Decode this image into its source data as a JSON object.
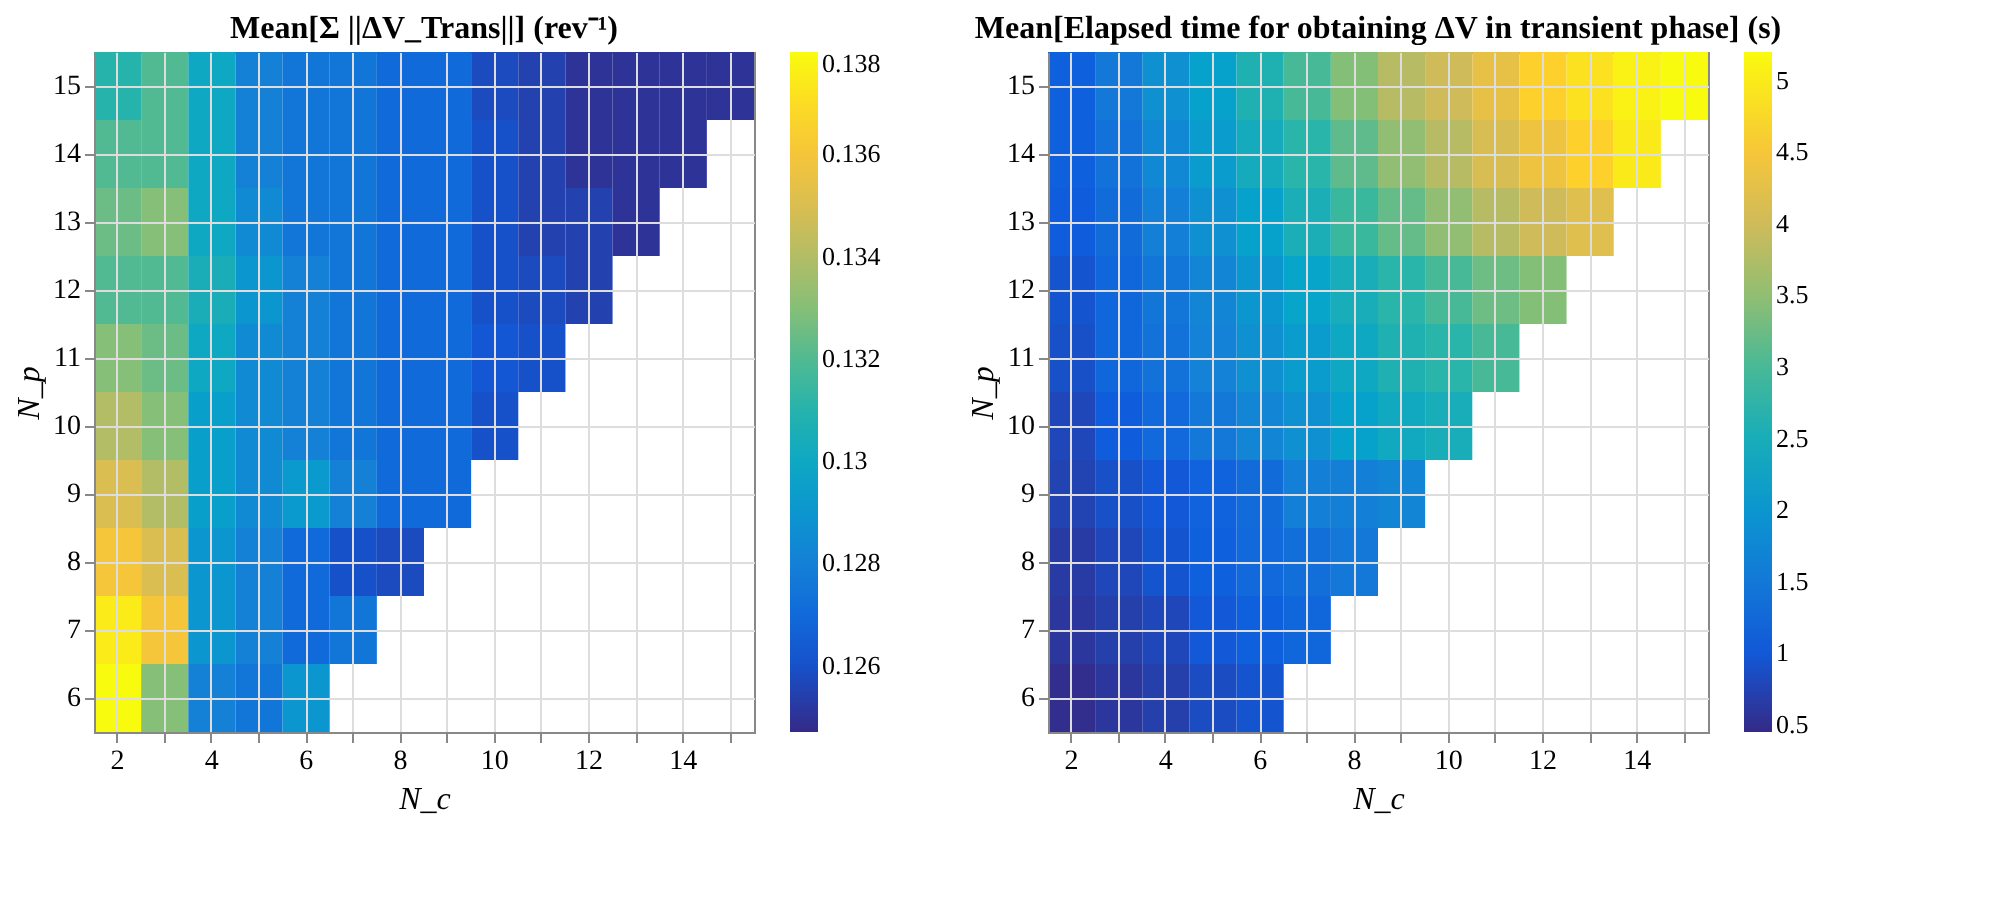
{
  "chart_data": [
    {
      "type": "heatmap",
      "title": "Mean[Σ ||ΔV_Trans||] (rev⁻¹)",
      "xlabel": "N_c",
      "ylabel": "N_p",
      "grid": true,
      "categories": [
        "2",
        null,
        "4",
        null,
        "6",
        null,
        "8",
        null,
        "10",
        null,
        "12",
        null,
        "14",
        null
      ],
      "y_categories": [
        "15",
        "14",
        "13",
        "12",
        "11",
        "10",
        "9",
        "8",
        "7",
        "6"
      ],
      "cells": [
        [
          0.131,
          0.132,
          0.13,
          0.128,
          0.1275,
          0.1275,
          0.127,
          0.127,
          0.1258,
          0.1255,
          0.125,
          0.125,
          0.125,
          0.125
        ],
        [
          0.132,
          0.132,
          0.13,
          0.128,
          0.1275,
          0.1275,
          0.127,
          0.127,
          0.126,
          0.1255,
          0.125,
          0.125,
          0.125,
          null
        ],
        [
          0.1325,
          0.133,
          0.13,
          0.1285,
          0.1275,
          0.1275,
          0.127,
          0.127,
          0.126,
          0.1255,
          0.1255,
          0.125,
          null,
          null
        ],
        [
          0.132,
          0.132,
          0.1305,
          0.129,
          0.128,
          0.1275,
          0.127,
          0.127,
          0.126,
          0.1258,
          0.1255,
          null,
          null,
          null
        ],
        [
          0.133,
          0.1325,
          0.13,
          0.1285,
          0.128,
          0.1275,
          0.127,
          0.127,
          0.1262,
          0.126,
          null,
          null,
          null,
          null
        ],
        [
          0.134,
          0.133,
          0.1295,
          0.1285,
          0.128,
          0.1275,
          0.127,
          0.127,
          0.126,
          null,
          null,
          null,
          null,
          null
        ],
        [
          0.135,
          0.134,
          0.1295,
          0.1285,
          0.1292,
          0.128,
          0.127,
          0.127,
          null,
          null,
          null,
          null,
          null,
          null
        ],
        [
          0.136,
          0.135,
          0.129,
          0.128,
          0.127,
          0.126,
          0.1258,
          null,
          null,
          null,
          null,
          null,
          null,
          null
        ],
        [
          0.1375,
          0.136,
          0.129,
          0.128,
          0.127,
          0.1275,
          null,
          null,
          null,
          null,
          null,
          null,
          null,
          null
        ],
        [
          0.138,
          0.133,
          0.128,
          0.1275,
          0.129,
          null,
          null,
          null,
          null,
          null,
          null,
          null,
          null,
          null
        ]
      ],
      "clim": [
        0.1247,
        0.138
      ],
      "cticks": [
        0.126,
        0.128,
        0.13,
        0.132,
        0.134,
        0.136,
        0.138
      ]
    },
    {
      "type": "heatmap",
      "title": "Mean[Elapsed time for obtaining ΔV in transient phase] (s)",
      "xlabel": "N_c",
      "ylabel": "N_p",
      "grid": true,
      "categories": [
        "2",
        null,
        "4",
        null,
        "6",
        null,
        "8",
        null,
        "10",
        null,
        "12",
        null,
        "14",
        null
      ],
      "y_categories": [
        "15",
        "14",
        "13",
        "12",
        "11",
        "10",
        "9",
        "8",
        "7",
        "6"
      ],
      "cells": [
        [
          1.1,
          1.5,
          1.9,
          2.2,
          2.6,
          3.0,
          3.4,
          3.8,
          4.0,
          4.3,
          4.7,
          4.9,
          5.1,
          5.2
        ],
        [
          1.1,
          1.4,
          1.75,
          2.1,
          2.45,
          2.75,
          3.15,
          3.5,
          3.8,
          4.1,
          4.4,
          4.7,
          5.0,
          null
        ],
        [
          1.05,
          1.3,
          1.6,
          1.9,
          2.2,
          2.55,
          2.9,
          3.2,
          3.5,
          3.8,
          4.0,
          4.2,
          null,
          null
        ],
        [
          0.95,
          1.2,
          1.45,
          1.7,
          2.0,
          2.25,
          2.5,
          2.75,
          3.0,
          3.25,
          3.4,
          null,
          null,
          null
        ],
        [
          0.9,
          1.2,
          1.4,
          1.65,
          1.9,
          2.1,
          2.35,
          2.6,
          2.75,
          3.0,
          null,
          null,
          null,
          null
        ],
        [
          0.8,
          1.05,
          1.25,
          1.5,
          1.7,
          1.9,
          2.2,
          2.4,
          2.5,
          null,
          null,
          null,
          null,
          null
        ],
        [
          0.75,
          0.9,
          1.0,
          1.15,
          1.3,
          1.6,
          1.6,
          1.7,
          null,
          null,
          null,
          null,
          null,
          null
        ],
        [
          0.65,
          0.8,
          0.95,
          1.1,
          1.25,
          1.35,
          1.5,
          null,
          null,
          null,
          null,
          null,
          null,
          null
        ],
        [
          0.6,
          0.7,
          0.8,
          1.0,
          1.1,
          1.2,
          null,
          null,
          null,
          null,
          null,
          null,
          null,
          null
        ],
        [
          0.5,
          0.6,
          0.7,
          0.85,
          0.95,
          null,
          null,
          null,
          null,
          null,
          null,
          null,
          null,
          null
        ]
      ],
      "clim": [
        0.45,
        5.2
      ],
      "cticks": [
        0.5,
        1,
        1.5,
        2,
        2.5,
        3,
        3.5,
        4,
        4.5,
        5
      ]
    }
  ]
}
